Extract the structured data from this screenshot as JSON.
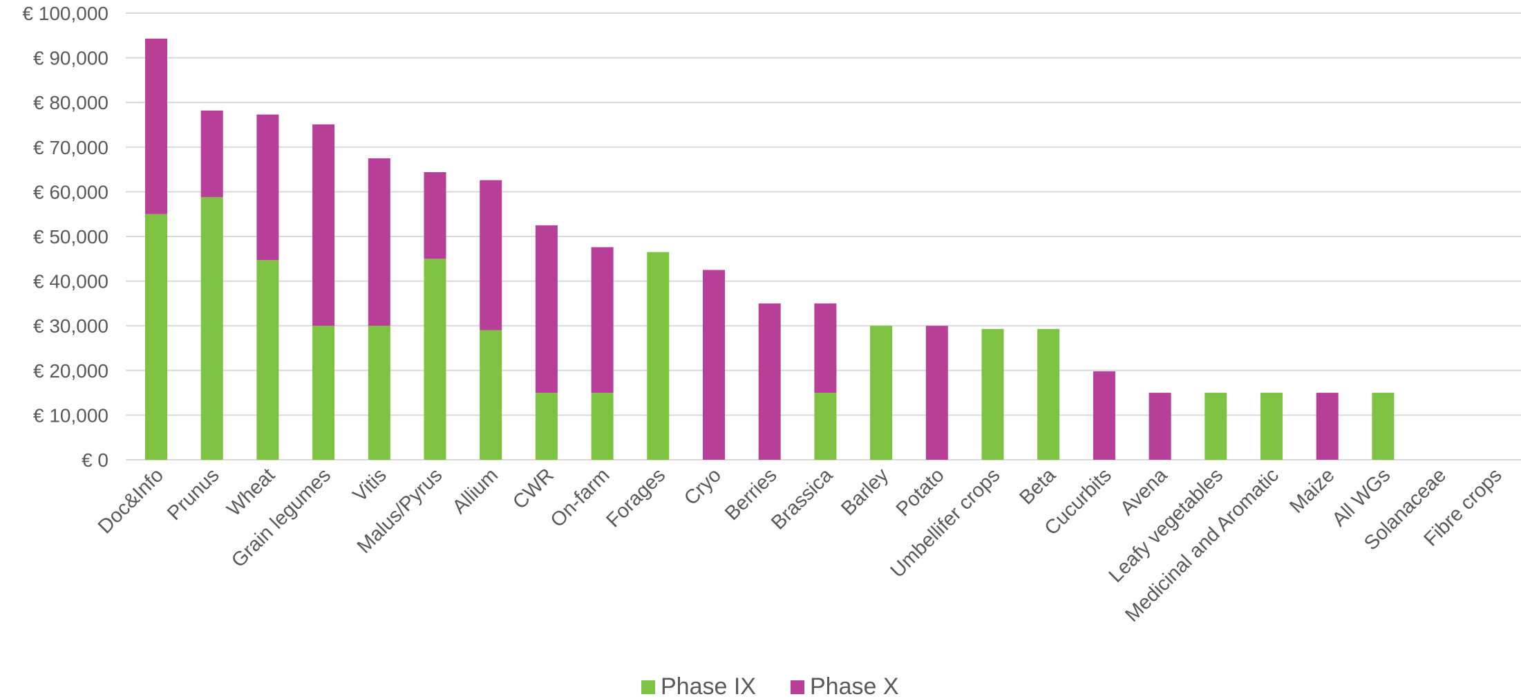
{
  "chart_data": {
    "type": "bar",
    "stacked": true,
    "title": "",
    "xlabel": "",
    "ylabel": "",
    "ylim": [
      0,
      100000
    ],
    "yticks": [
      0,
      10000,
      20000,
      30000,
      40000,
      50000,
      60000,
      70000,
      80000,
      90000,
      100000
    ],
    "ytick_labels": [
      "€ 0",
      "€ 10,000",
      "€ 20,000",
      "€ 30,000",
      "€ 40,000",
      "€ 50,000",
      "€ 60,000",
      "€ 70,000",
      "€ 80,000",
      "€ 90,000",
      "€ 100,000"
    ],
    "grid": true,
    "legend_position": "bottom",
    "categories": [
      "Doc&Info",
      "Prunus",
      "Wheat",
      "Grain legumes",
      "Vitis",
      "Malus/Pyrus",
      "Allium",
      "CWR",
      "On-farm",
      "Forages",
      "Cryo",
      "Berries",
      "Brassica",
      "Barley",
      "Potato",
      "Umbellifer crops",
      "Beta",
      "Cucurbits",
      "Avena",
      "Leafy vegetables",
      "Medicinal and Aromatic",
      "Maize",
      "All WGs",
      "Solanaceae",
      "Fibre crops"
    ],
    "series": [
      {
        "name": "Phase IX",
        "color": "#7dc241",
        "values": [
          55000,
          58800,
          44700,
          30000,
          30000,
          45000,
          29000,
          15000,
          15000,
          46500,
          0,
          0,
          15000,
          30000,
          0,
          29300,
          29300,
          0,
          0,
          15000,
          15000,
          0,
          15000,
          0,
          0
        ]
      },
      {
        "name": "Phase X",
        "color": "#b83f97",
        "values": [
          39300,
          19400,
          32600,
          45100,
          37500,
          19400,
          33600,
          37500,
          32600,
          0,
          42500,
          35000,
          20000,
          0,
          30000,
          0,
          0,
          19800,
          15000,
          0,
          0,
          15000,
          0,
          0,
          0
        ]
      }
    ]
  }
}
